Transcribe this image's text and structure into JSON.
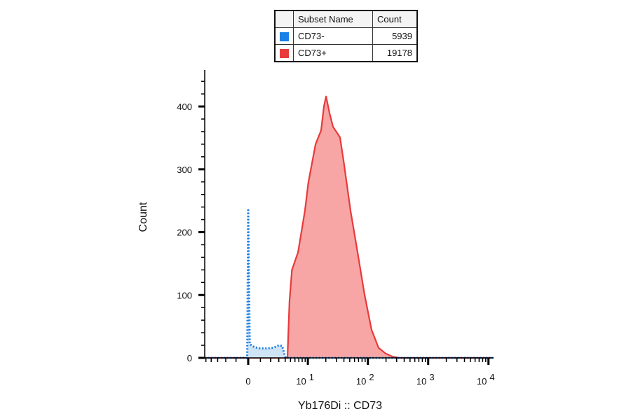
{
  "legend": {
    "headers": [
      "Subset Name",
      "Count"
    ],
    "rows": [
      {
        "name": "CD73-",
        "count": "5939",
        "color": "#1a7fe6"
      },
      {
        "name": "CD73+",
        "count": "19178",
        "color": "#e83a3a"
      }
    ]
  },
  "chart_data": {
    "type": "area",
    "xlabel": "Yb176Di :: CD73",
    "ylabel": "Count",
    "x_scale": "biexponential",
    "xlim": [
      -5.2,
      12000
    ],
    "ylim": [
      0,
      458
    ],
    "x_ticks": [
      {
        "value": 0,
        "label": "0"
      },
      {
        "value": 10,
        "base": "10",
        "exp": "1"
      },
      {
        "value": 100,
        "base": "10",
        "exp": "2"
      },
      {
        "value": 1000,
        "base": "10",
        "exp": "3"
      },
      {
        "value": 10000,
        "base": "10",
        "exp": "4"
      }
    ],
    "y_ticks": [
      0,
      100,
      200,
      300,
      400
    ],
    "grid": false,
    "legend_position": "top",
    "series": [
      {
        "name": "CD73-",
        "color": "#1a7fe6",
        "fill": "#cfe3f7",
        "line_style": "dotted",
        "x": [
          -5.2,
          -0.08,
          0,
          0.12,
          0.5,
          1.0,
          1.6,
          2.3,
          3.0,
          3.5,
          3.9,
          4.1,
          12000
        ],
        "y": [
          0,
          0,
          235,
          22,
          17,
          15,
          15,
          16,
          20,
          19,
          5,
          0,
          0
        ]
      },
      {
        "name": "CD73+",
        "color": "#e83a3a",
        "fill": "#f7a5a5",
        "line_style": "solid",
        "x": [
          -5.2,
          4.4,
          4.8,
          5.3,
          6.8,
          8.9,
          10.2,
          13.5,
          16.7,
          18.6,
          20.2,
          23,
          26.3,
          34.4,
          39.5,
          51.6,
          67.5,
          88,
          115,
          150,
          197,
          257,
          336,
          12000
        ],
        "y": [
          0,
          0,
          90,
          140,
          168,
          234,
          279,
          340,
          362,
          400,
          416,
          390,
          368,
          351,
          313,
          234,
          168,
          101,
          45,
          16,
          7,
          2,
          0,
          0
        ]
      }
    ]
  }
}
